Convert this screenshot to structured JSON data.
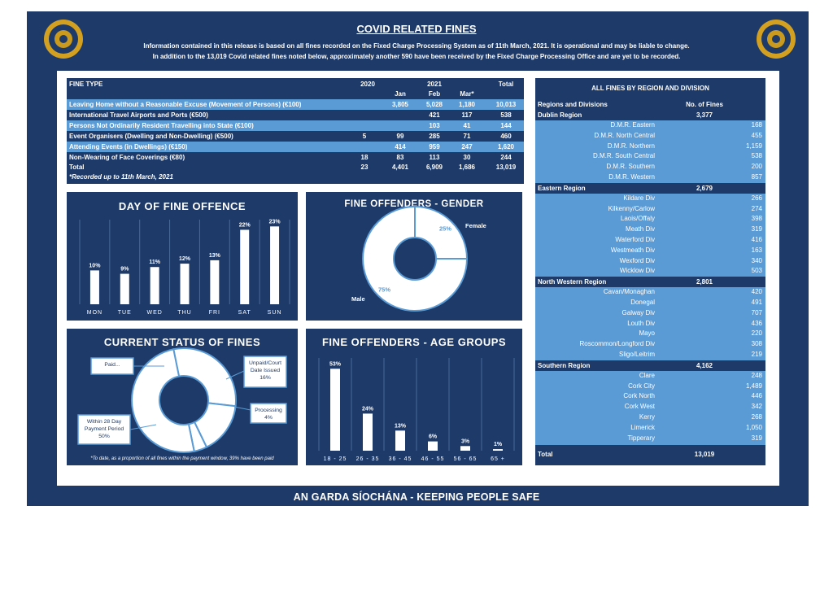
{
  "header": {
    "title": "COVID RELATED FINES",
    "info_line1": "Information contained in this release is based on all fines recorded on the Fixed Charge Processing System as of 11th March, 2021.  It is operational and may be liable to change.",
    "info_line2": "In addition to the 13,019 Covid related fines noted below, approximately another 590 have been received by the Fixed Charge Processing Office and are yet to be recorded."
  },
  "fines_table": {
    "col_fine_type": "FINE TYPE",
    "col_2020": "2020",
    "col_2021": "2021",
    "col_total": "Total",
    "sub_jan": "Jan",
    "sub_feb": "Feb",
    "sub_mar": "Mar*",
    "rows": [
      {
        "label": "Leaving Home without a Reasonable Excuse (Movement of Persons) (€100)",
        "y2020": "",
        "jan": "3,805",
        "feb": "5,028",
        "mar": "1,180",
        "total": "10,013"
      },
      {
        "label": "International Travel Airports and Ports (€500)",
        "y2020": "",
        "jan": "",
        "feb": "421",
        "mar": "117",
        "total": "538"
      },
      {
        "label": "Persons Not Ordinarily Resident Travelling into State (€100)",
        "y2020": "",
        "jan": "",
        "feb": "103",
        "mar": "41",
        "total": "144"
      },
      {
        "label": "Event Organisers (Dwelling and Non-Dwelling) (€500)",
        "y2020": "5",
        "jan": "99",
        "feb": "285",
        "mar": "71",
        "total": "460"
      },
      {
        "label": "Attending Events (in Dwellings) (€150)",
        "y2020": "",
        "jan": "414",
        "feb": "959",
        "mar": "247",
        "total": "1,620"
      },
      {
        "label": "Non-Wearing of Face Coverings (€80)",
        "y2020": "18",
        "jan": "83",
        "feb": "113",
        "mar": "30",
        "total": "244"
      }
    ],
    "total": {
      "label": "Total",
      "y2020": "23",
      "jan": "4,401",
      "feb": "6,909",
      "mar": "1,686",
      "total": "13,019"
    },
    "note": "*Recorded up to 11th March, 2021"
  },
  "regions_table": {
    "title": "ALL FINES BY REGION AND DIVISION",
    "col_name": "Regions and Divisions",
    "col_count": "No. of Fines",
    "regions": [
      {
        "name": "Dublin Region",
        "total": "3,377",
        "divisions": [
          {
            "name": "D.M.R. Eastern",
            "value": "168"
          },
          {
            "name": "D.M.R. North Central",
            "value": "455"
          },
          {
            "name": "D.M.R. Northern",
            "value": "1,159"
          },
          {
            "name": "D.M.R. South Central",
            "value": "538"
          },
          {
            "name": "D.M.R. Southern",
            "value": "200"
          },
          {
            "name": "D.M.R. Western",
            "value": "857"
          }
        ]
      },
      {
        "name": "Eastern Region",
        "total": "2,679",
        "divisions": [
          {
            "name": "Kildare Div",
            "value": "266"
          },
          {
            "name": "Kilkenny/Carlow",
            "value": "274"
          },
          {
            "name": "Laois/Offaly",
            "value": "398"
          },
          {
            "name": "Meath Div",
            "value": "319"
          },
          {
            "name": "Waterford Div",
            "value": "416"
          },
          {
            "name": "Westmeath Div",
            "value": "163"
          },
          {
            "name": "Wexford Div",
            "value": "340"
          },
          {
            "name": "Wicklow Div",
            "value": "503"
          }
        ]
      },
      {
        "name": "North Western Region",
        "total": "2,801",
        "divisions": [
          {
            "name": "Cavan/Monaghan",
            "value": "420"
          },
          {
            "name": "Donegal",
            "value": "491"
          },
          {
            "name": "Galway Div",
            "value": "707"
          },
          {
            "name": "Louth Div",
            "value": "436"
          },
          {
            "name": "Mayo",
            "value": "220"
          },
          {
            "name": "Roscommon/Longford Div",
            "value": "308"
          },
          {
            "name": "Sligo/Leitrim",
            "value": "219"
          }
        ]
      },
      {
        "name": "Southern Region",
        "total": "4,162",
        "divisions": [
          {
            "name": "Clare",
            "value": "248"
          },
          {
            "name": "Cork City",
            "value": "1,489"
          },
          {
            "name": "Cork North",
            "value": "446"
          },
          {
            "name": "Cork West",
            "value": "342"
          },
          {
            "name": "Kerry",
            "value": "268"
          },
          {
            "name": "Limerick",
            "value": "1,050"
          },
          {
            "name": "Tipperary",
            "value": "319"
          }
        ]
      }
    ],
    "total_label": "Total",
    "total_value": "13,019"
  },
  "chart_data": [
    {
      "type": "bar",
      "title": "DAY OF FINE OFFENCE",
      "categories": [
        "MON",
        "TUE",
        "WED",
        "THU",
        "FRI",
        "SAT",
        "SUN"
      ],
      "values": [
        10,
        9,
        11,
        12,
        13,
        22,
        23
      ],
      "value_labels": [
        "10%",
        "9%",
        "11%",
        "12%",
        "13%",
        "22%",
        "23%"
      ],
      "ylim": [
        0,
        25
      ],
      "grid": "vertical separators"
    },
    {
      "type": "pie",
      "title": "FINE OFFENDERS - GENDER",
      "categories": [
        "Female",
        "Male"
      ],
      "values": [
        25,
        75
      ],
      "value_labels": [
        "25%",
        "75%"
      ]
    },
    {
      "type": "pie",
      "title": "CURRENT STATUS OF FINES",
      "categories": [
        "Paid...",
        "Unpaid/Court Date Issued",
        "Processing",
        "Within 28 Day Payment Period"
      ],
      "values": [
        30,
        16,
        4,
        50
      ],
      "value_labels": [
        "",
        "16%",
        "4%",
        "50%"
      ],
      "note": "*To date, as a proportion of all fines within the payment window, 39% have been paid"
    },
    {
      "type": "bar",
      "title": "FINE OFFENDERS - AGE GROUPS",
      "categories": [
        "18 - 25",
        "26 - 35",
        "36 - 45",
        "46 - 55",
        "56 - 65",
        "65 +"
      ],
      "values": [
        53,
        24,
        13,
        6,
        3,
        1
      ],
      "value_labels": [
        "53%",
        "24%",
        "13%",
        "6%",
        "3%",
        "1%"
      ],
      "ylim": [
        0,
        60
      ],
      "grid": "vertical separators"
    }
  ],
  "footer": {
    "text": "AN GARDA SÍOCHÁNA - KEEPING PEOPLE SAFE"
  },
  "colors": {
    "navy": "#1e3a68",
    "light_blue": "#5b9bd5",
    "badge_gold": "#d4a020"
  }
}
